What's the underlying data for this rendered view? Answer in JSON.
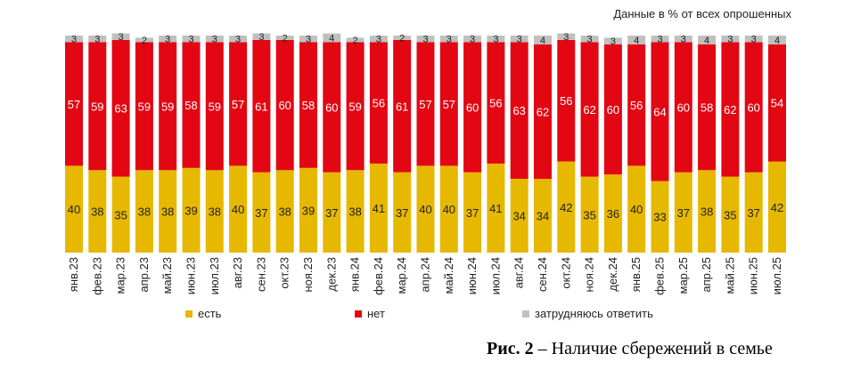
{
  "note": "Данные в % от всех опрошенных",
  "caption": {
    "label": "Рис. 2",
    "text": " – Наличие сбережений в семье"
  },
  "legend": [
    {
      "name": "есть",
      "color": "#e6b800"
    },
    {
      "name": "нет",
      "color": "#e30613"
    },
    {
      "name": "затрудняюсь ответить",
      "color": "#c0c0c0"
    }
  ],
  "chart_data": {
    "type": "bar",
    "stacked": true,
    "title": "",
    "ylim": [
      0,
      100
    ],
    "categories": [
      "янв.23",
      "фев.23",
      "мар.23",
      "апр.23",
      "май.23",
      "июн.23",
      "июл.23",
      "авг.23",
      "сен.23",
      "окт.23",
      "ноя.23",
      "дек.23",
      "янв.24",
      "фев.24",
      "мар.24",
      "апр.24",
      "май.24",
      "июн.24",
      "июл.24",
      "авг.24",
      "сен.24",
      "окт.24",
      "ноя.24",
      "дек.24",
      "янв.25",
      "фев.25",
      "мар.25",
      "апр.25",
      "май.25",
      "июн.25",
      "июл.25"
    ],
    "series": [
      {
        "name": "есть",
        "color": "#e6b800",
        "values": [
          40,
          38,
          35,
          38,
          38,
          39,
          38,
          40,
          37,
          38,
          39,
          37,
          38,
          41,
          37,
          40,
          40,
          37,
          41,
          34,
          34,
          42,
          35,
          36,
          40,
          33,
          37,
          38,
          35,
          37,
          42
        ]
      },
      {
        "name": "нет",
        "color": "#e30613",
        "values": [
          57,
          59,
          63,
          59,
          59,
          58,
          59,
          57,
          61,
          60,
          58,
          60,
          59,
          56,
          61,
          57,
          57,
          60,
          56,
          63,
          62,
          56,
          62,
          60,
          56,
          64,
          60,
          58,
          62,
          60,
          54
        ]
      },
      {
        "name": "затрудняюсь ответить",
        "color": "#c0c0c0",
        "values": [
          3,
          3,
          3,
          2,
          3,
          3,
          3,
          3,
          3,
          2,
          3,
          4,
          2,
          3,
          2,
          3,
          3,
          3,
          3,
          3,
          4,
          3,
          3,
          3,
          4,
          3,
          3,
          4,
          3,
          3,
          4
        ]
      }
    ]
  }
}
